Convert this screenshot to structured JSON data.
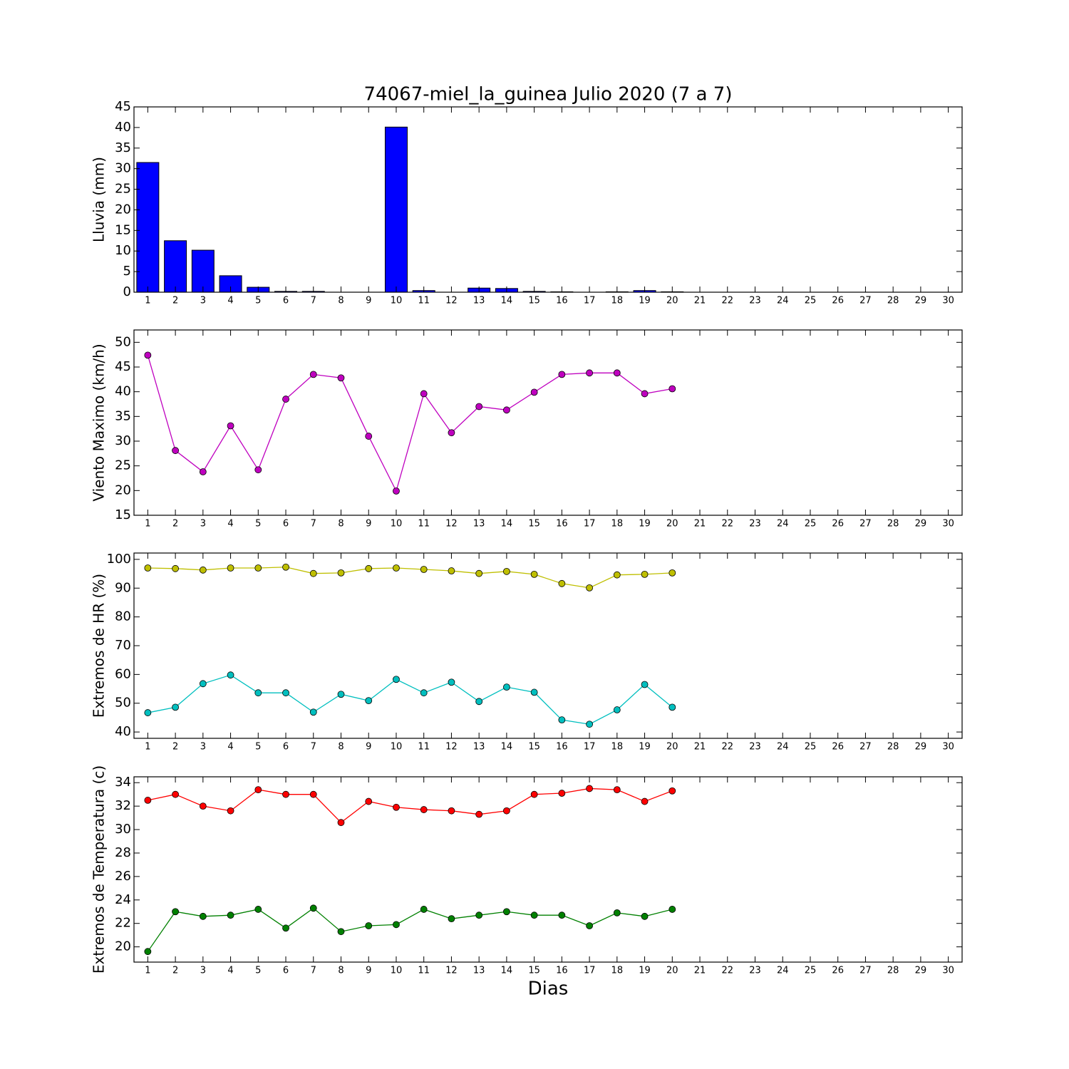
{
  "chart_data": [
    {
      "type": "bar",
      "title": "74067-miel_la_guinea Julio 2020  (7 a 7)",
      "ylabel": "Lluvia (mm)",
      "x": [
        1,
        2,
        3,
        4,
        5,
        6,
        7,
        8,
        9,
        10,
        11,
        12,
        13,
        14,
        15,
        16,
        17,
        18,
        19,
        20,
        21,
        22,
        23,
        24,
        25,
        26,
        27,
        28,
        29,
        30
      ],
      "series": [
        {
          "color": "#0000ff",
          "values": [
            31.5,
            12.5,
            10.2,
            4.0,
            1.2,
            0.2,
            0.2,
            0,
            0,
            40.1,
            0.4,
            0,
            1.0,
            0.9,
            0.2,
            0.1,
            0,
            0.1,
            0.4,
            0.1,
            null,
            null,
            null,
            null,
            null,
            null,
            null,
            null,
            null,
            null
          ]
        }
      ],
      "xlim": [
        0.5,
        30.5
      ],
      "xticks": [
        1,
        2,
        3,
        4,
        5,
        6,
        7,
        8,
        9,
        10,
        11,
        12,
        13,
        14,
        15,
        16,
        17,
        18,
        19,
        20,
        21,
        22,
        23,
        24,
        25,
        26,
        27,
        28,
        29,
        30
      ],
      "ylim": [
        0,
        45
      ],
      "yticks": [
        0,
        5,
        10,
        15,
        20,
        25,
        30,
        35,
        40,
        45
      ]
    },
    {
      "type": "line",
      "ylabel": "Viento Maximo (km/h)",
      "x": [
        1,
        2,
        3,
        4,
        5,
        6,
        7,
        8,
        9,
        10,
        11,
        12,
        13,
        14,
        15,
        16,
        17,
        18,
        19,
        20,
        21,
        22,
        23,
        24,
        25,
        26,
        27,
        28,
        29,
        30
      ],
      "series": [
        {
          "color": "#bf00bf",
          "values": [
            47.4,
            28.1,
            23.8,
            33.1,
            24.2,
            38.5,
            43.5,
            42.8,
            31.0,
            19.9,
            39.6,
            31.7,
            37.0,
            36.3,
            39.9,
            43.5,
            43.8,
            43.8,
            39.6,
            40.6,
            null,
            null,
            null,
            null,
            null,
            null,
            null,
            null,
            null,
            null
          ]
        }
      ],
      "xlim": [
        0.5,
        30.5
      ],
      "xticks": [
        1,
        2,
        3,
        4,
        5,
        6,
        7,
        8,
        9,
        10,
        11,
        12,
        13,
        14,
        15,
        16,
        17,
        18,
        19,
        20,
        21,
        22,
        23,
        24,
        25,
        26,
        27,
        28,
        29,
        30
      ],
      "ylim": [
        15,
        52.5
      ],
      "yticks": [
        15,
        20,
        25,
        30,
        35,
        40,
        45,
        50
      ]
    },
    {
      "type": "line",
      "ylabel": "Extremos de HR (%)",
      "x": [
        1,
        2,
        3,
        4,
        5,
        6,
        7,
        8,
        9,
        10,
        11,
        12,
        13,
        14,
        15,
        16,
        17,
        18,
        19,
        20,
        21,
        22,
        23,
        24,
        25,
        26,
        27,
        28,
        29,
        30
      ],
      "series": [
        {
          "color": "#bfbf00",
          "values": [
            97.0,
            96.8,
            96.3,
            97.0,
            97.0,
            97.3,
            95.1,
            95.3,
            96.8,
            97.0,
            96.5,
            96.0,
            95.1,
            95.8,
            94.8,
            91.6,
            90.1,
            94.6,
            94.8,
            95.3,
            null,
            null,
            null,
            null,
            null,
            null,
            null,
            null,
            null,
            null
          ]
        },
        {
          "color": "#00bfbf",
          "values": [
            46.7,
            48.6,
            56.8,
            59.8,
            53.6,
            53.6,
            46.9,
            53.1,
            50.9,
            58.3,
            53.6,
            57.3,
            50.6,
            55.6,
            53.8,
            44.2,
            42.7,
            47.7,
            56.5,
            48.6,
            null,
            null,
            null,
            null,
            null,
            null,
            null,
            null,
            null,
            null
          ]
        }
      ],
      "xlim": [
        0.5,
        30.5
      ],
      "xticks": [
        1,
        2,
        3,
        4,
        5,
        6,
        7,
        8,
        9,
        10,
        11,
        12,
        13,
        14,
        15,
        16,
        17,
        18,
        19,
        20,
        21,
        22,
        23,
        24,
        25,
        26,
        27,
        28,
        29,
        30
      ],
      "ylim": [
        37.8,
        102.2
      ],
      "yticks": [
        40,
        50,
        60,
        70,
        80,
        90,
        100
      ]
    },
    {
      "type": "line",
      "ylabel": "Extremos de Temperatura (c)",
      "xlabel": "Dias",
      "x": [
        1,
        2,
        3,
        4,
        5,
        6,
        7,
        8,
        9,
        10,
        11,
        12,
        13,
        14,
        15,
        16,
        17,
        18,
        19,
        20,
        21,
        22,
        23,
        24,
        25,
        26,
        27,
        28,
        29,
        30
      ],
      "series": [
        {
          "color": "#ff0000",
          "values": [
            32.5,
            33.0,
            32.0,
            31.6,
            33.4,
            33.0,
            33.0,
            30.6,
            32.4,
            31.9,
            31.7,
            31.6,
            31.3,
            31.6,
            33.0,
            33.1,
            33.5,
            33.4,
            32.4,
            33.3,
            null,
            null,
            null,
            null,
            null,
            null,
            null,
            null,
            null,
            null
          ]
        },
        {
          "color": "#008000",
          "values": [
            19.6,
            23.0,
            22.6,
            22.7,
            23.2,
            21.6,
            23.3,
            21.3,
            21.8,
            21.9,
            23.2,
            22.4,
            22.7,
            23.0,
            22.7,
            22.7,
            21.8,
            22.9,
            22.6,
            23.2,
            null,
            null,
            null,
            null,
            null,
            null,
            null,
            null,
            null,
            null
          ]
        }
      ],
      "xlim": [
        0.5,
        30.5
      ],
      "xticks": [
        1,
        2,
        3,
        4,
        5,
        6,
        7,
        8,
        9,
        10,
        11,
        12,
        13,
        14,
        15,
        16,
        17,
        18,
        19,
        20,
        21,
        22,
        23,
        24,
        25,
        26,
        27,
        28,
        29,
        30
      ],
      "ylim": [
        18.7,
        34.5
      ],
      "yticks": [
        20,
        22,
        24,
        26,
        28,
        30,
        32,
        34
      ]
    }
  ]
}
